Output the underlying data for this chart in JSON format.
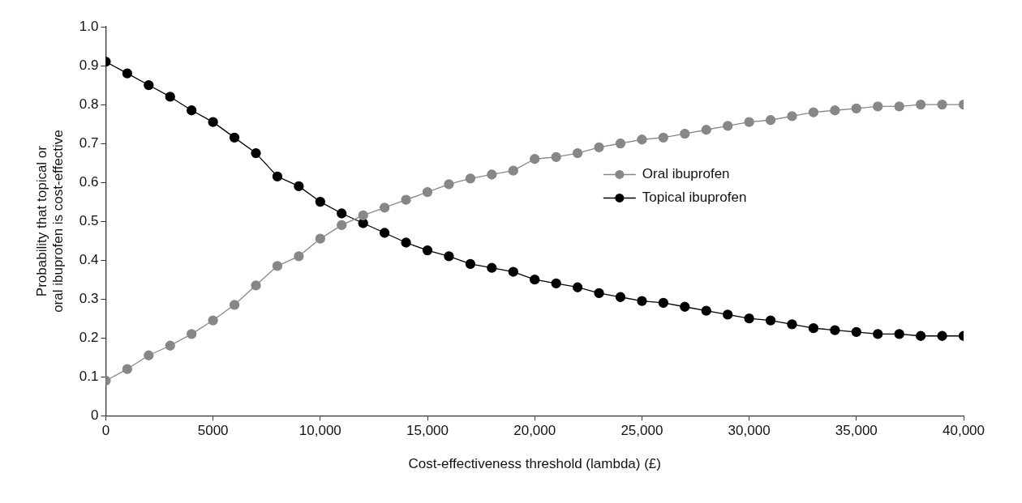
{
  "chart_data": {
    "type": "line",
    "xlabel": "Cost-effectiveness threshold (lambda) (£)",
    "ylabel": "Probability that topical or\noral ibuprofen is cost-effective",
    "x": [
      0,
      1000,
      2000,
      3000,
      4000,
      5000,
      6000,
      7000,
      8000,
      9000,
      10000,
      11000,
      12000,
      13000,
      14000,
      15000,
      16000,
      17000,
      18000,
      19000,
      20000,
      21000,
      22000,
      23000,
      24000,
      25000,
      26000,
      27000,
      28000,
      29000,
      30000,
      31000,
      32000,
      33000,
      34000,
      35000,
      36000,
      37000,
      38000,
      39000,
      40000
    ],
    "series": [
      {
        "name": "Oral ibuprofen",
        "color": "#878787",
        "values": [
          0.09,
          0.12,
          0.155,
          0.18,
          0.21,
          0.245,
          0.285,
          0.335,
          0.385,
          0.41,
          0.455,
          0.49,
          0.515,
          0.535,
          0.555,
          0.575,
          0.595,
          0.61,
          0.62,
          0.63,
          0.66,
          0.665,
          0.675,
          0.69,
          0.7,
          0.71,
          0.715,
          0.725,
          0.735,
          0.745,
          0.755,
          0.76,
          0.77,
          0.78,
          0.785,
          0.79,
          0.795,
          0.795,
          0.8,
          0.8,
          0.8
        ]
      },
      {
        "name": "Topical ibuprofen",
        "color": "#000000",
        "values": [
          0.91,
          0.88,
          0.85,
          0.82,
          0.785,
          0.755,
          0.715,
          0.675,
          0.615,
          0.59,
          0.55,
          0.52,
          0.495,
          0.47,
          0.445,
          0.425,
          0.41,
          0.39,
          0.38,
          0.37,
          0.35,
          0.34,
          0.33,
          0.315,
          0.305,
          0.295,
          0.29,
          0.28,
          0.27,
          0.26,
          0.25,
          0.245,
          0.235,
          0.225,
          0.22,
          0.215,
          0.21,
          0.21,
          0.205,
          0.205,
          0.205
        ]
      }
    ],
    "xlim": [
      0,
      40000
    ],
    "xticks": [
      0,
      5000,
      {
        "value": 10000,
        "label": "10,000"
      },
      {
        "value": 15000,
        "label": "15,000"
      },
      {
        "value": 20000,
        "label": "20,000"
      },
      {
        "value": 25000,
        "label": "25,000"
      },
      {
        "value": 30000,
        "label": "30,000"
      },
      {
        "value": 35000,
        "label": "35,000"
      },
      {
        "value": 40000,
        "label": "40,000"
      }
    ],
    "ylim": [
      0,
      1
    ],
    "yticks": [
      0,
      0.1,
      0.2,
      0.3,
      0.4,
      0.5,
      0.6,
      0.7,
      0.8,
      0.9,
      {
        "value": 1,
        "label": "1.0"
      }
    ],
    "grid": false,
    "legend": "top",
    "marker": "circle",
    "line_style": "solid"
  }
}
